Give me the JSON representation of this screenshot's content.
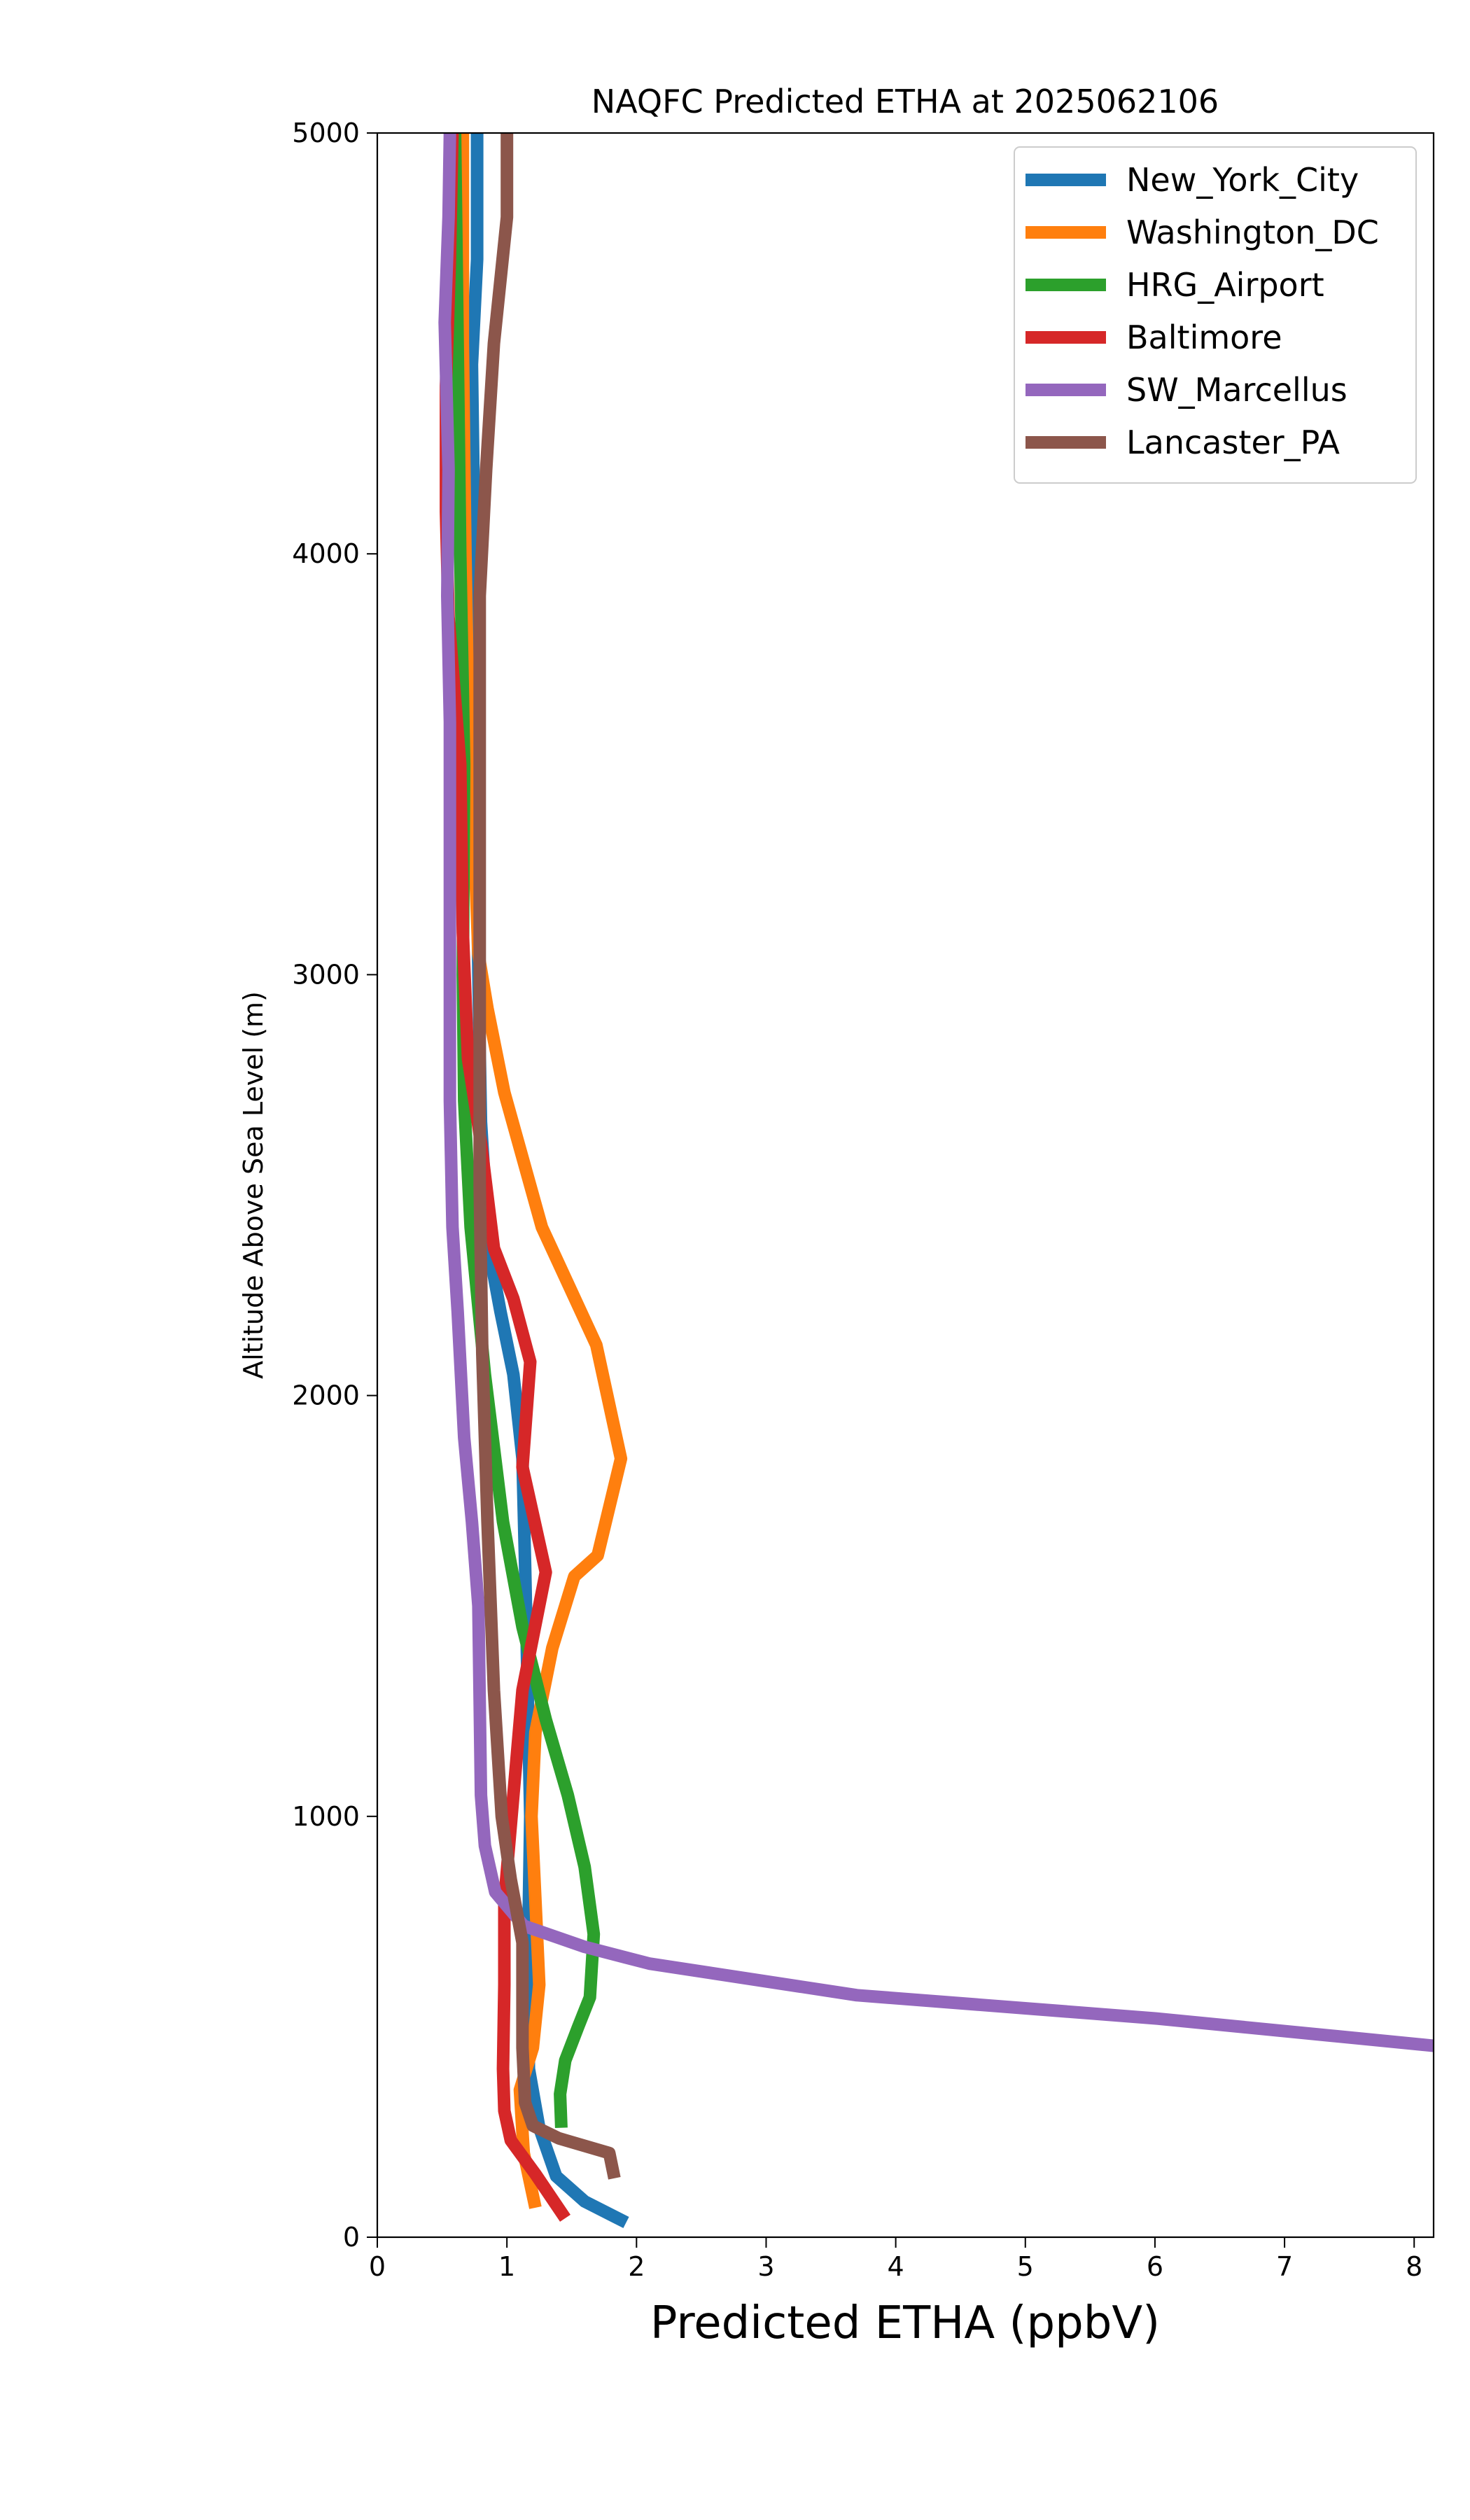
{
  "chart_data": {
    "type": "line",
    "title": "NAQFC Predicted ETHA at 2025062106",
    "xlabel": "Predicted ETHA (ppbV)",
    "ylabel": "Altitude Above Sea Level (m)",
    "xlim": [
      0,
      8.15
    ],
    "ylim": [
      0,
      5000
    ],
    "xticks": [
      0,
      1,
      2,
      3,
      4,
      5,
      6,
      7,
      8
    ],
    "yticks": [
      0,
      1000,
      2000,
      3000,
      4000,
      5000
    ],
    "grid": false,
    "legend_position": "top-right",
    "series": [
      {
        "name": "New_York_City",
        "color": "#1f77b4",
        "points": [
          [
            1.92,
            35
          ],
          [
            1.6,
            85
          ],
          [
            1.38,
            145
          ],
          [
            1.25,
            260
          ],
          [
            1.17,
            400
          ],
          [
            1.16,
            600
          ],
          [
            1.17,
            800
          ],
          [
            1.18,
            1000
          ],
          [
            1.16,
            1300
          ],
          [
            1.14,
            1600
          ],
          [
            1.12,
            1850
          ],
          [
            1.05,
            2050
          ],
          [
            0.95,
            2200
          ],
          [
            0.86,
            2350
          ],
          [
            0.8,
            2650
          ],
          [
            0.78,
            3000
          ],
          [
            0.76,
            3500
          ],
          [
            0.75,
            4000
          ],
          [
            0.73,
            4450
          ],
          [
            0.77,
            4700
          ],
          [
            0.77,
            5000
          ]
        ]
      },
      {
        "name": "Washington_DC",
        "color": "#ff7f0e",
        "points": [
          [
            1.22,
            70
          ],
          [
            1.13,
            200
          ],
          [
            1.1,
            350
          ],
          [
            1.2,
            450
          ],
          [
            1.25,
            600
          ],
          [
            1.22,
            800
          ],
          [
            1.19,
            1000
          ],
          [
            1.22,
            1200
          ],
          [
            1.35,
            1400
          ],
          [
            1.52,
            1570
          ],
          [
            1.7,
            1620
          ],
          [
            1.88,
            1850
          ],
          [
            1.69,
            2120
          ],
          [
            1.27,
            2400
          ],
          [
            0.98,
            2720
          ],
          [
            0.85,
            2920
          ],
          [
            0.78,
            3050
          ],
          [
            0.75,
            3300
          ],
          [
            0.7,
            3650
          ],
          [
            0.68,
            4000
          ],
          [
            0.66,
            4500
          ],
          [
            0.66,
            5000
          ]
        ]
      },
      {
        "name": "HRG_Airport",
        "color": "#2ca02c",
        "points": [
          [
            1.42,
            260
          ],
          [
            1.41,
            340
          ],
          [
            1.45,
            420
          ],
          [
            1.55,
            500
          ],
          [
            1.64,
            570
          ],
          [
            1.67,
            720
          ],
          [
            1.6,
            880
          ],
          [
            1.47,
            1050
          ],
          [
            1.3,
            1230
          ],
          [
            1.12,
            1450
          ],
          [
            0.97,
            1700
          ],
          [
            0.83,
            2050
          ],
          [
            0.72,
            2400
          ],
          [
            0.67,
            2700
          ],
          [
            0.66,
            3000
          ],
          [
            0.67,
            3500
          ],
          [
            0.64,
            4000
          ],
          [
            0.62,
            4500
          ],
          [
            0.6,
            5000
          ]
        ]
      },
      {
        "name": "Baltimore",
        "color": "#d62728",
        "points": [
          [
            1.45,
            45
          ],
          [
            1.22,
            150
          ],
          [
            1.03,
            230
          ],
          [
            0.98,
            300
          ],
          [
            0.97,
            400
          ],
          [
            0.98,
            600
          ],
          [
            0.98,
            800
          ],
          [
            1.05,
            1050
          ],
          [
            1.12,
            1300
          ],
          [
            1.3,
            1580
          ],
          [
            1.12,
            1830
          ],
          [
            1.18,
            2080
          ],
          [
            1.05,
            2230
          ],
          [
            0.9,
            2350
          ],
          [
            0.8,
            2600
          ],
          [
            0.7,
            2800
          ],
          [
            0.66,
            3100
          ],
          [
            0.64,
            3500
          ],
          [
            0.55,
            3850
          ],
          [
            0.53,
            4100
          ],
          [
            0.53,
            4400
          ],
          [
            0.56,
            4700
          ],
          [
            0.58,
            5000
          ]
        ]
      },
      {
        "name": "SW_Marcellus",
        "color": "#9467bd",
        "points": [
          [
            8.15,
            455
          ],
          [
            6.0,
            520
          ],
          [
            3.7,
            575
          ],
          [
            2.1,
            650
          ],
          [
            1.6,
            690
          ],
          [
            1.13,
            740
          ],
          [
            0.91,
            820
          ],
          [
            0.83,
            930
          ],
          [
            0.8,
            1050
          ],
          [
            0.78,
            1500
          ],
          [
            0.73,
            1700
          ],
          [
            0.67,
            1900
          ],
          [
            0.62,
            2200
          ],
          [
            0.58,
            2400
          ],
          [
            0.56,
            2700
          ],
          [
            0.56,
            3000
          ],
          [
            0.56,
            3300
          ],
          [
            0.56,
            3600
          ],
          [
            0.54,
            3900
          ],
          [
            0.55,
            4200
          ],
          [
            0.52,
            4550
          ],
          [
            0.55,
            4800
          ],
          [
            0.56,
            5000
          ]
        ]
      },
      {
        "name": "Lancaster_PA",
        "color": "#8c564b",
        "points": [
          [
            1.83,
            140
          ],
          [
            1.79,
            200
          ],
          [
            1.4,
            235
          ],
          [
            1.2,
            265
          ],
          [
            1.14,
            320
          ],
          [
            1.12,
            450
          ],
          [
            1.12,
            700
          ],
          [
            1.03,
            850
          ],
          [
            0.96,
            1000
          ],
          [
            0.9,
            1300
          ],
          [
            0.85,
            1700
          ],
          [
            0.81,
            2100
          ],
          [
            0.79,
            2500
          ],
          [
            0.79,
            3000
          ],
          [
            0.79,
            3500
          ],
          [
            0.79,
            3900
          ],
          [
            0.84,
            4200
          ],
          [
            0.9,
            4500
          ],
          [
            1.0,
            4800
          ],
          [
            1.0,
            5000
          ]
        ]
      }
    ]
  }
}
